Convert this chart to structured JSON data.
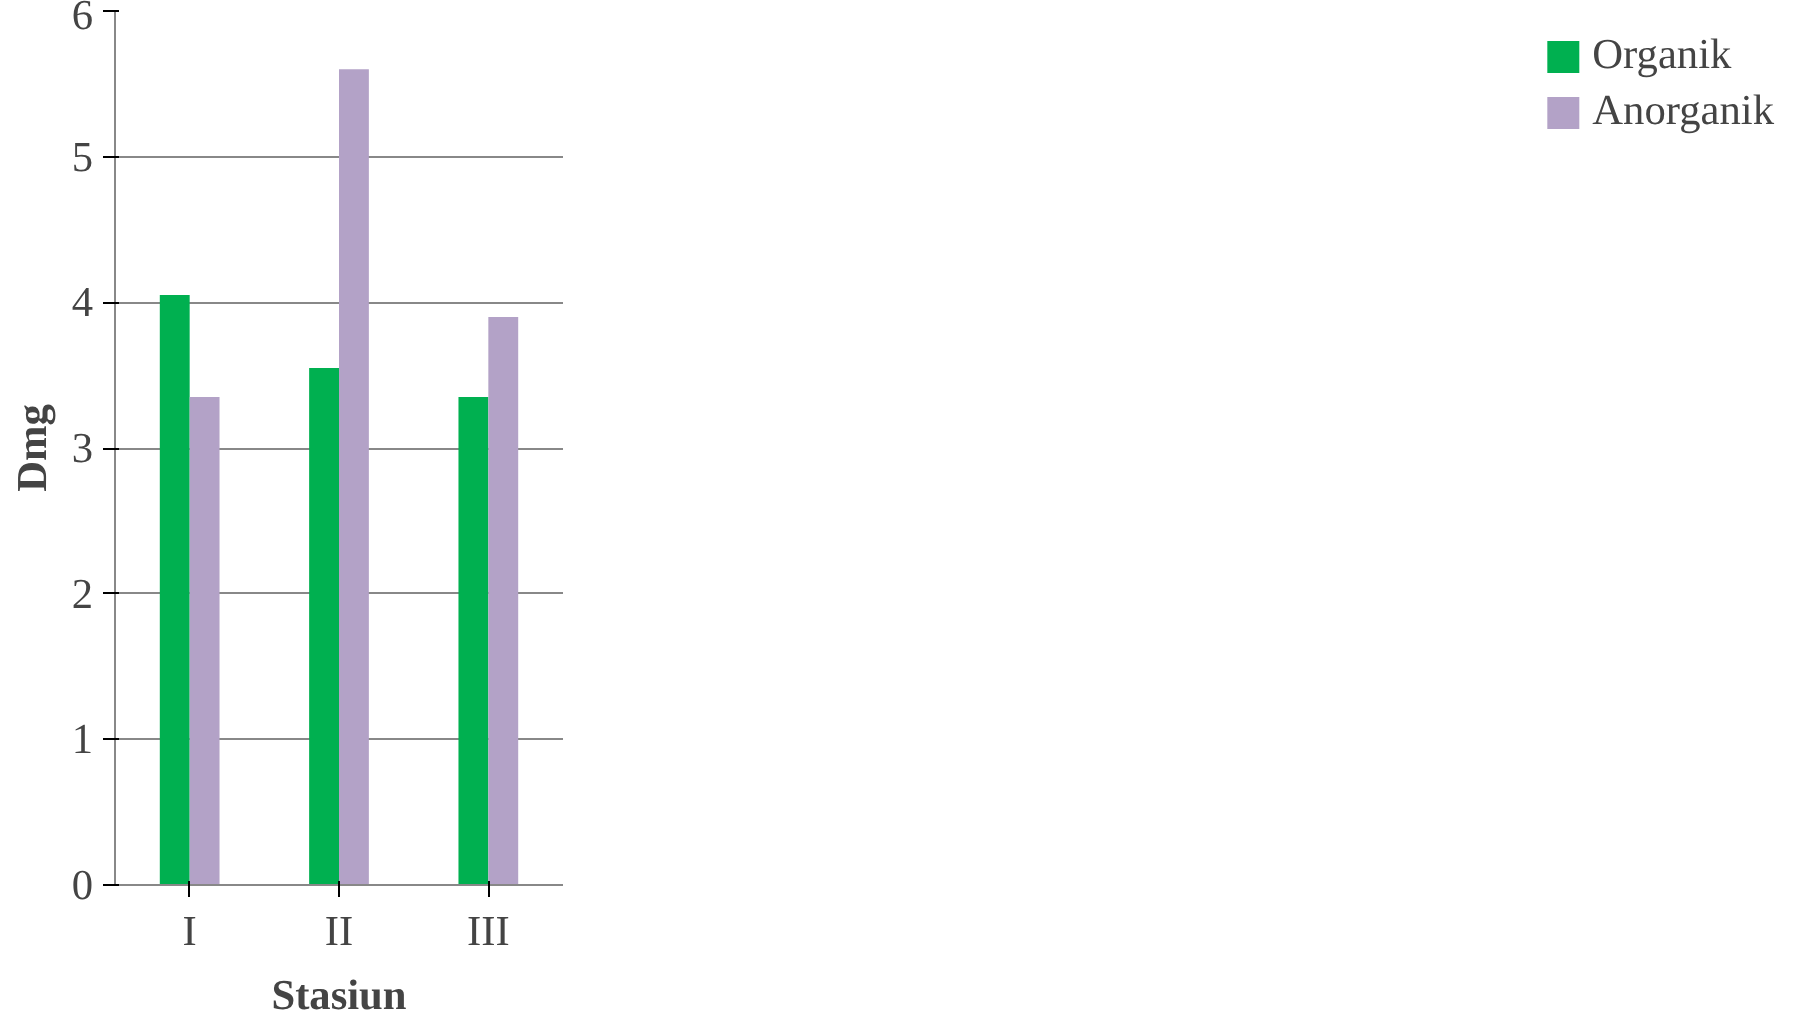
{
  "chart_data": {
    "type": "bar",
    "xlabel": "Stasiun",
    "ylabel": "Dmg",
    "categories": [
      "I",
      "II",
      "III"
    ],
    "series": [
      {
        "name": "Organik",
        "color": "#00b050",
        "values": [
          4.05,
          3.55,
          3.35
        ]
      },
      {
        "name": "Anorganik",
        "color": "#b3a2c7",
        "values": [
          3.35,
          5.6,
          3.9
        ]
      }
    ],
    "ylim": [
      0,
      6
    ],
    "yticks": [
      0,
      1,
      2,
      3,
      4,
      5,
      6
    ],
    "grid": "y",
    "legend": "right"
  }
}
